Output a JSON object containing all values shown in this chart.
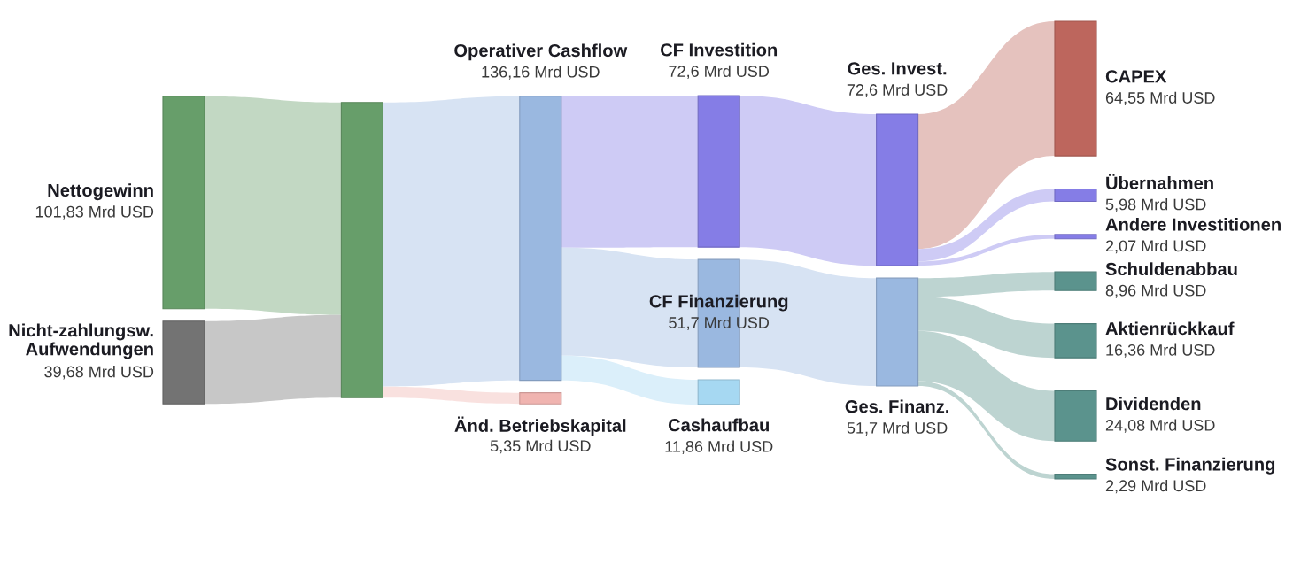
{
  "chart_data": {
    "type": "other",
    "categories": [
      "Nettogewinn",
      "Nicht-zahlungsw.\nAufwendungen",
      null,
      "Operativer Cashflow",
      "Änd. Betriebskapital",
      "CF Investition",
      "CF Finanzierung",
      "Cashaufbau",
      "Ges. Invest.",
      "Ges. Finanz.",
      "CAPEX",
      "Übernahmen",
      "Andere Investitionen",
      "Schuldenabbau",
      "Aktienrückkauf",
      "Dividenden",
      "Sonst. Finanzierung"
    ],
    "values": [
      101.83,
      39.68,
      null,
      136.16,
      5.35,
      72.6,
      51.7,
      11.86,
      72.6,
      51.7,
      64.55,
      5.98,
      2.07,
      8.96,
      16.36,
      24.08,
      2.29
    ],
    "value_labels": [
      "101,83 Mrd USD",
      "39,68 Mrd USD",
      null,
      "136,16 Mrd USD",
      "5,35 Mrd USD",
      "72,6 Mrd USD",
      "51,7 Mrd USD",
      "11,86 Mrd USD",
      "72,6 Mrd USD",
      "51,7 Mrd USD",
      "64,55 Mrd USD",
      "5,98 Mrd USD",
      "2,07 Mrd USD",
      "8,96 Mrd USD",
      "16,36 Mrd USD",
      "24,08 Mrd USD",
      "2,29 Mrd USD"
    ],
    "colors": [
      "#679e6a",
      "#737373",
      "#679e6a",
      "#9ab8e0",
      "#f0b4b0",
      "#857de6",
      "#9ab8e0",
      "#a6d8f2",
      "#857de6",
      "#9ab8e0",
      "#bd665d",
      "#857de6",
      "#857de6",
      "#5b938d",
      "#5b938d",
      "#5b938d",
      "#5b938d"
    ]
  }
}
